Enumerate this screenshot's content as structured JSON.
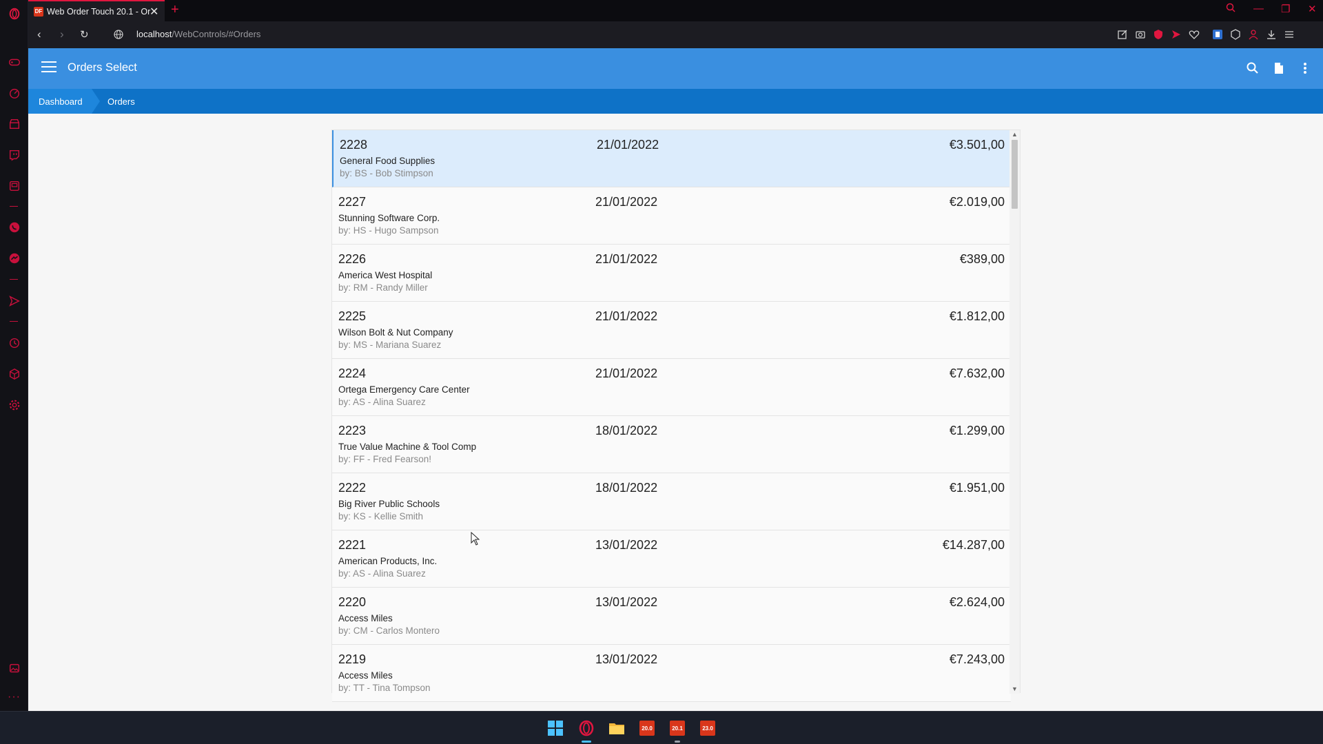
{
  "browser": {
    "tab_title": "Web Order Touch 20.1 - Or",
    "tab_favicon": "DF",
    "url_host": "localhost",
    "url_path": "/WebControls/#Orders"
  },
  "app": {
    "title": "Orders Select",
    "breadcrumb": {
      "dashboard": "Dashboard",
      "orders": "Orders"
    }
  },
  "orders": [
    {
      "number": "2228",
      "date": "21/01/2022",
      "amount": "€3.501,00",
      "customer": "General Food Supplies",
      "salesperson": "by: BS - Bob Stimpson",
      "selected": true
    },
    {
      "number": "2227",
      "date": "21/01/2022",
      "amount": "€2.019,00",
      "customer": "Stunning Software Corp.",
      "salesperson": "by: HS - Hugo Sampson"
    },
    {
      "number": "2226",
      "date": "21/01/2022",
      "amount": "€389,00",
      "customer": "America West Hospital",
      "salesperson": "by: RM - Randy Miller"
    },
    {
      "number": "2225",
      "date": "21/01/2022",
      "amount": "€1.812,00",
      "customer": "Wilson Bolt & Nut Company",
      "salesperson": "by: MS - Mariana Suarez"
    },
    {
      "number": "2224",
      "date": "21/01/2022",
      "amount": "€7.632,00",
      "customer": "Ortega Emergency Care Center",
      "salesperson": "by: AS - Alina Suarez"
    },
    {
      "number": "2223",
      "date": "18/01/2022",
      "amount": "€1.299,00",
      "customer": "True Value Machine & Tool Comp",
      "salesperson": "by: FF - Fred Fearson!"
    },
    {
      "number": "2222",
      "date": "18/01/2022",
      "amount": "€1.951,00",
      "customer": "Big River Public Schools",
      "salesperson": "by: KS - Kellie Smith"
    },
    {
      "number": "2221",
      "date": "13/01/2022",
      "amount": "€14.287,00",
      "customer": "American Products, Inc.",
      "salesperson": "by: AS - Alina Suarez"
    },
    {
      "number": "2220",
      "date": "13/01/2022",
      "amount": "€2.624,00",
      "customer": "Access Miles",
      "salesperson": "by: CM - Carlos Montero"
    },
    {
      "number": "2219",
      "date": "13/01/2022",
      "amount": "€7.243,00",
      "customer": "Access Miles",
      "salesperson": "by: TT - Tina Tompson"
    }
  ],
  "taskbar": {
    "items": [
      "windows-start-icon",
      "opera-icon",
      "file-explorer-icon",
      "app-20-0",
      "app-20-1",
      "app-23-0"
    ],
    "badges": {
      "app_20_0": "20.0",
      "app_20_1": "20.1",
      "app_23_0": "23.0"
    }
  },
  "colors": {
    "header": "#3a8fe0",
    "breadcrumb": "#0e72c7",
    "selected_row": "#dcecfc",
    "opera_accent": "#e0163f"
  }
}
